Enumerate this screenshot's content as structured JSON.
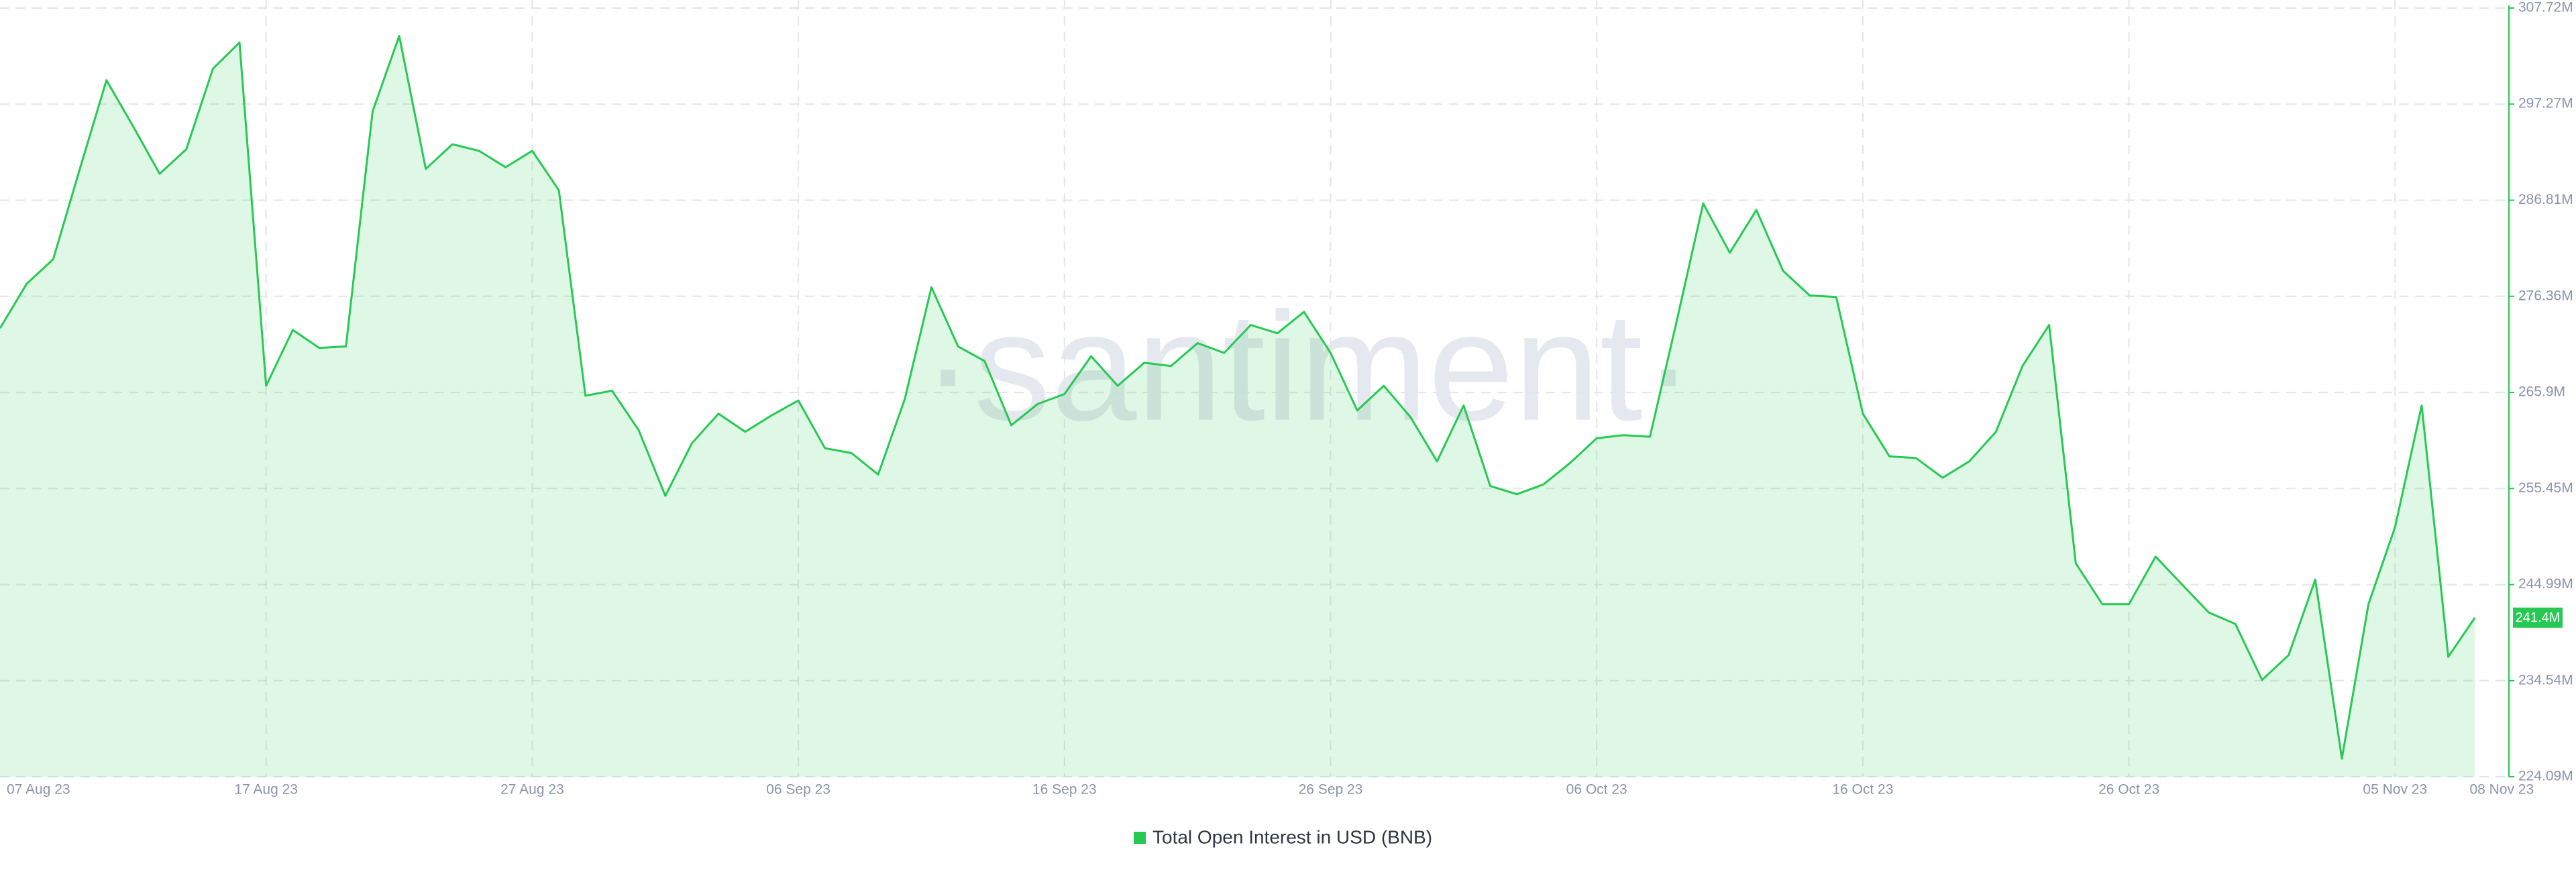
{
  "chart_data": {
    "type": "area",
    "watermark": "·santiment·",
    "categories": [
      "07 Aug 23",
      null,
      null,
      null,
      null,
      null,
      null,
      null,
      null,
      null,
      "17 Aug 23",
      null,
      null,
      null,
      null,
      null,
      null,
      null,
      null,
      null,
      "27 Aug 23",
      null,
      null,
      null,
      null,
      null,
      null,
      null,
      null,
      null,
      "06 Sep 23",
      null,
      null,
      null,
      null,
      null,
      null,
      null,
      null,
      null,
      "16 Sep 23",
      null,
      null,
      null,
      null,
      null,
      null,
      null,
      null,
      null,
      "26 Sep 23",
      null,
      null,
      null,
      null,
      null,
      null,
      null,
      null,
      null,
      "06 Oct 23",
      null,
      null,
      null,
      null,
      null,
      null,
      null,
      null,
      null,
      "16 Oct 23",
      null,
      null,
      null,
      null,
      null,
      null,
      null,
      null,
      null,
      "26 Oct 23",
      null,
      null,
      null,
      null,
      null,
      null,
      null,
      null,
      null,
      "05 Nov 23",
      null,
      null,
      "08 Nov 23"
    ],
    "series": [
      {
        "name": "Total Open Interest in USD (BNB)",
        "color": "#26c953",
        "values": [
          272.88,
          277.71,
          280.39,
          290.22,
          299.87,
          294.86,
          289.68,
          292.36,
          301.12,
          303.98,
          266.63,
          272.7,
          270.74,
          270.91,
          296.47,
          304.69,
          290.22,
          292.9,
          292.18,
          290.4,
          292.18,
          287.89,
          265.55,
          266.09,
          261.8,
          254.65,
          260.37,
          263.59,
          261.62,
          263.41,
          265.02,
          259.83,
          259.3,
          256.97,
          265.2,
          277.35,
          270.91,
          269.31,
          262.34,
          264.66,
          265.73,
          269.84,
          266.63,
          269.13,
          268.77,
          271.27,
          270.2,
          273.24,
          272.34,
          274.67,
          270.2,
          263.94,
          266.63,
          263.23,
          258.4,
          264.48,
          255.72,
          254.83,
          255.9,
          258.23,
          260.91,
          261.26,
          261.08,
          273.6,
          286.46,
          281.1,
          285.75,
          279.14,
          276.45,
          276.28,
          263.59,
          258.94,
          258.76,
          256.62,
          258.4,
          261.62,
          268.77,
          273.24,
          247.32,
          242.86,
          242.86,
          248.04,
          245.0,
          241.96,
          240.71,
          234.63,
          237.32,
          245.54,
          226.06,
          242.86,
          251.26,
          264.48,
          237.14,
          241.4
        ],
        "value_labels": [
          null,
          null,
          null,
          null,
          null,
          null,
          null,
          null,
          null,
          null,
          null,
          null,
          null,
          null,
          null,
          null,
          null,
          null,
          null,
          null,
          null,
          null,
          null,
          null,
          null,
          null,
          null,
          null,
          null,
          null,
          null,
          null,
          null,
          null,
          null,
          null,
          null,
          null,
          null,
          null,
          null,
          null,
          null,
          null,
          null,
          null,
          null,
          null,
          null,
          null,
          null,
          null,
          null,
          null,
          null,
          null,
          null,
          null,
          null,
          null,
          null,
          null,
          null,
          null,
          null,
          null,
          null,
          null,
          null,
          null,
          null,
          null,
          null,
          null,
          null,
          null,
          null,
          null,
          null,
          null,
          null,
          null,
          null,
          null,
          null,
          null,
          null,
          null,
          null,
          null,
          null,
          null,
          null,
          "241.4M"
        ]
      }
    ],
    "ylim": [
      224.09,
      307.72
    ],
    "yticks": [
      {
        "value": 224.09,
        "label": "224.09M"
      },
      {
        "value": 234.54,
        "label": "234.54M"
      },
      {
        "value": 244.99,
        "label": "244.99M"
      },
      {
        "value": 255.45,
        "label": "255.45M"
      },
      {
        "value": 265.9,
        "label": "265.9M"
      },
      {
        "value": 276.36,
        "label": "276.36M"
      },
      {
        "value": 286.81,
        "label": "286.81M"
      },
      {
        "value": 297.27,
        "label": "297.27M"
      },
      {
        "value": 307.72,
        "label": "307.72M"
      }
    ],
    "grid": true
  }
}
